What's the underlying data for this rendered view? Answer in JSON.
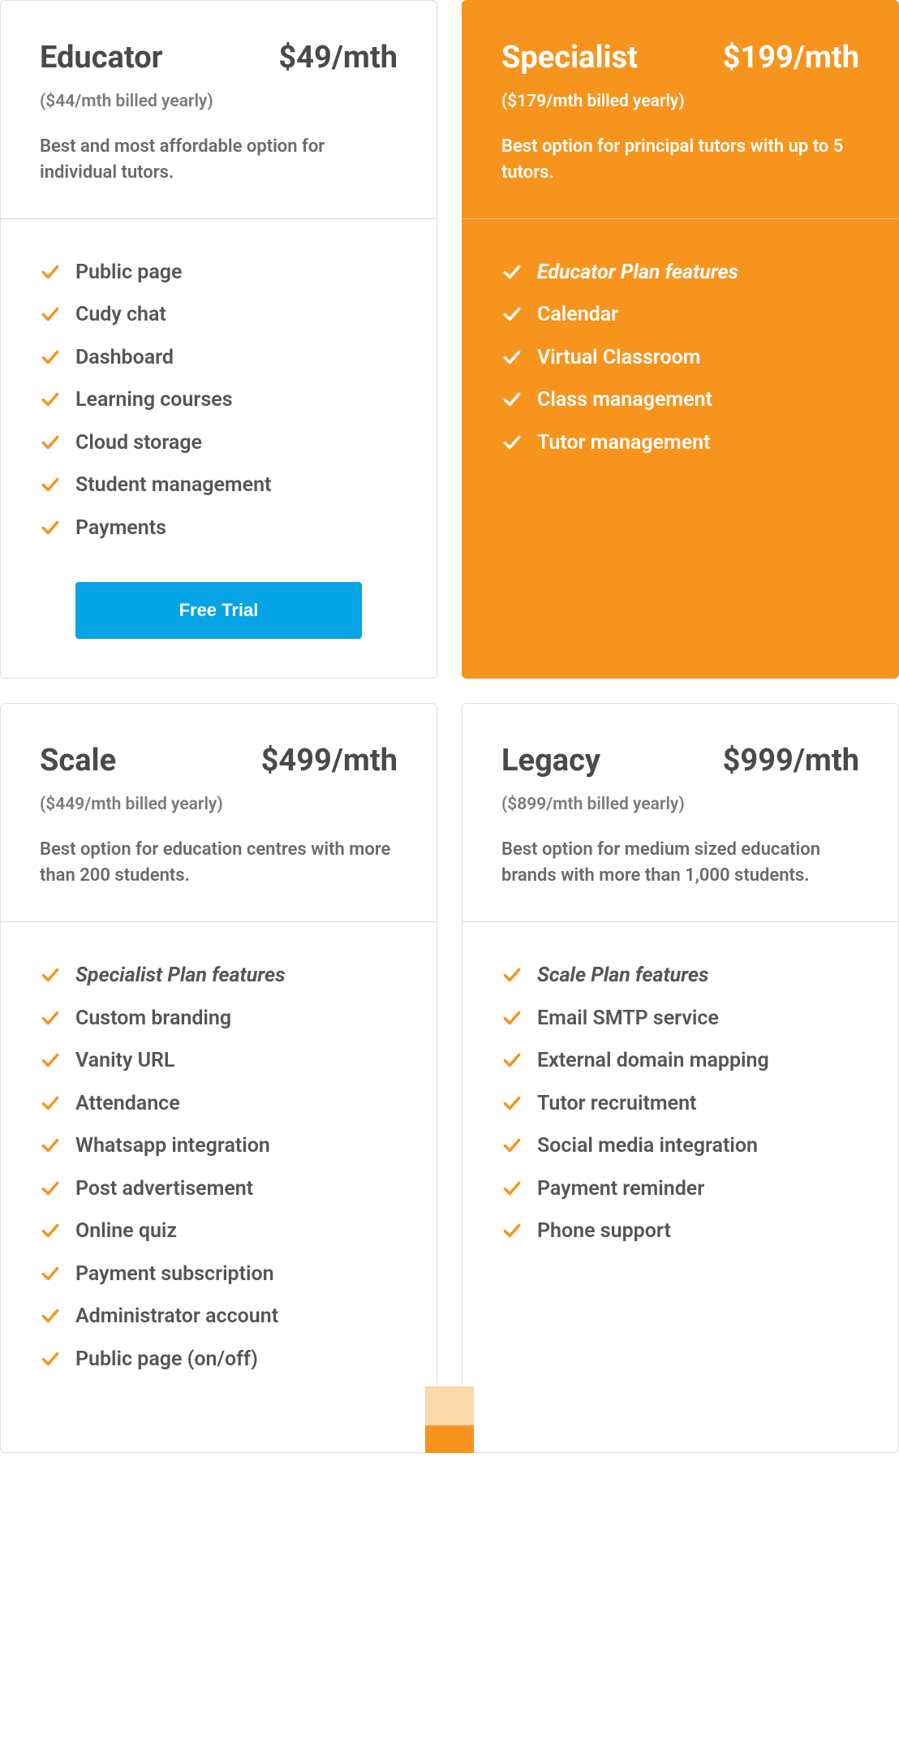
{
  "colors": {
    "accent": "#f7941d",
    "accent_pale": "#fcd9a8",
    "cta_blue": "#05a4e4",
    "text": "#4a4a4a",
    "muted": "#7a7a7a",
    "border": "#e0e0e0"
  },
  "cta_label": "Free Trial",
  "plans": [
    {
      "id": "educator",
      "name": "Educator",
      "price": "$49/mth",
      "yearly": "($44/mth billed yearly)",
      "desc": "Best and most affordable option for individual tutors.",
      "highlight": false,
      "show_cta": true,
      "features": [
        {
          "label": "Public page",
          "em": false
        },
        {
          "label": "Cudy chat",
          "em": false
        },
        {
          "label": "Dashboard",
          "em": false
        },
        {
          "label": "Learning courses",
          "em": false
        },
        {
          "label": "Cloud storage",
          "em": false
        },
        {
          "label": "Student management",
          "em": false
        },
        {
          "label": "Payments",
          "em": false
        }
      ]
    },
    {
      "id": "specialist",
      "name": "Specialist",
      "price": "$199/mth",
      "yearly": "($179/mth billed yearly)",
      "desc": "Best option for principal tutors with up to 5 tutors.",
      "highlight": true,
      "show_cta": false,
      "features": [
        {
          "label": "Educator Plan features",
          "em": true
        },
        {
          "label": "Calendar",
          "em": false
        },
        {
          "label": "Virtual Classroom",
          "em": false
        },
        {
          "label": "Class management",
          "em": false
        },
        {
          "label": "Tutor management",
          "em": false
        }
      ]
    },
    {
      "id": "scale",
      "name": "Scale",
      "price": "$499/mth",
      "yearly": "($449/mth billed yearly)",
      "desc": "Best option for education centres with more than 200 students.",
      "highlight": false,
      "show_cta": false,
      "features": [
        {
          "label": "Specialist Plan features",
          "em": true
        },
        {
          "label": "Custom branding",
          "em": false
        },
        {
          "label": "Vanity URL",
          "em": false
        },
        {
          "label": "Attendance",
          "em": false
        },
        {
          "label": "Whatsapp integration",
          "em": false
        },
        {
          "label": "Post advertisement",
          "em": false
        },
        {
          "label": "Online quiz",
          "em": false
        },
        {
          "label": "Payment subscription",
          "em": false
        },
        {
          "label": "Administrator account",
          "em": false
        },
        {
          "label": "Public page (on/off)",
          "em": false
        }
      ]
    },
    {
      "id": "legacy",
      "name": "Legacy",
      "price": "$999/mth",
      "yearly": "($899/mth billed yearly)",
      "desc": "Best option for medium sized education brands with more than 1,000 students.",
      "highlight": false,
      "show_cta": false,
      "features": [
        {
          "label": "Scale Plan features",
          "em": true
        },
        {
          "label": "Email SMTP service",
          "em": false
        },
        {
          "label": "External domain mapping",
          "em": false
        },
        {
          "label": "Tutor recruitment",
          "em": false
        },
        {
          "label": "Social media integration",
          "em": false
        },
        {
          "label": "Payment reminder",
          "em": false
        },
        {
          "label": "Phone support",
          "em": false
        }
      ]
    }
  ]
}
